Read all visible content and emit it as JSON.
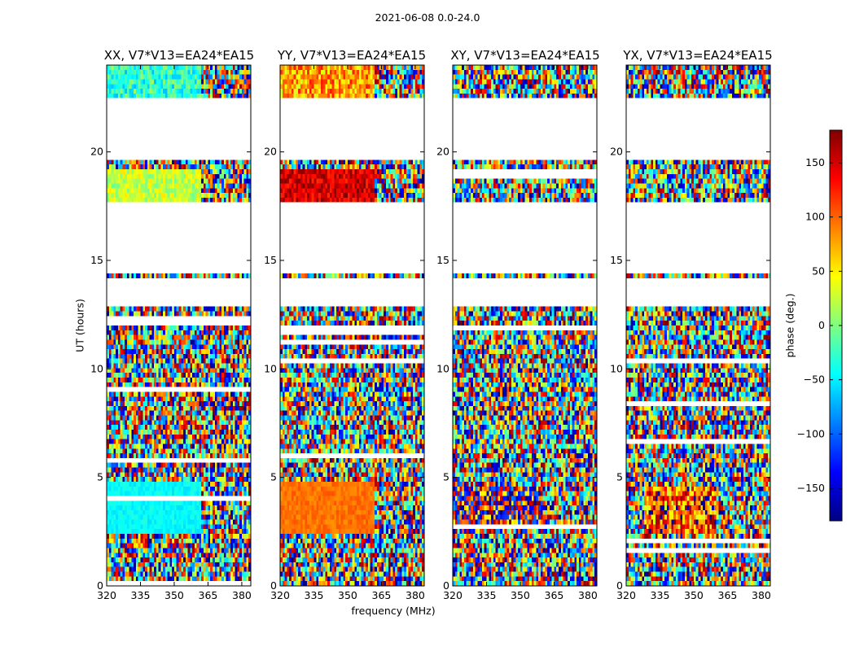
{
  "figure_title": "2021-06-08 0.0-24.0",
  "chart_data": {
    "type": "heatmap",
    "xlabel": "frequency (MHz)",
    "ylabel": "UT (hours)",
    "xlim": [
      320,
      384
    ],
    "ylim": [
      0,
      24
    ],
    "xticks": [
      320,
      335,
      350,
      365,
      380
    ],
    "yticks": [
      0,
      5,
      10,
      15,
      20
    ],
    "colorbar": {
      "label": "phase (deg.)",
      "range": [
        -180,
        180
      ],
      "ticks": [
        -150,
        -100,
        -50,
        0,
        50,
        100,
        150
      ],
      "colormap": "jet"
    },
    "flagged_time_ranges_hours": [
      [
        12.9,
        14.2
      ],
      [
        14.4,
        17.6
      ],
      [
        19.6,
        22.4
      ]
    ],
    "panels": [
      {
        "title": "XX, V7*V13=EA24*EA15",
        "regions": [
          {
            "t": [
              2.5,
              4.7
            ],
            "f": [
              320,
              362
            ],
            "phase": -45,
            "spread": 12
          },
          {
            "t": [
              17.7,
              19.2
            ],
            "f": [
              320,
              362
            ],
            "phase": 25,
            "spread": 30
          },
          {
            "t": [
              22.5,
              24.0
            ],
            "f": [
              320,
              362
            ],
            "phase": -30,
            "spread": 40
          }
        ]
      },
      {
        "title": "YY, V7*V13=EA24*EA15",
        "regions": [
          {
            "t": [
              2.5,
              4.7
            ],
            "f": [
              320,
              362
            ],
            "phase": 95,
            "spread": 12
          },
          {
            "t": [
              17.7,
              19.2
            ],
            "f": [
              320,
              362
            ],
            "phase": 150,
            "spread": 30
          },
          {
            "t": [
              22.5,
              24.0
            ],
            "f": [
              320,
              362
            ],
            "phase": 80,
            "spread": 50
          }
        ]
      },
      {
        "title": "XY, V7*V13=EA24*EA15",
        "regions": [
          {
            "t": [
              2.8,
              4.6
            ],
            "f": [
              320,
              360
            ],
            "phase": 160,
            "spread": 120
          }
        ]
      },
      {
        "title": "YX, V7*V13=EA24*EA15",
        "regions": [
          {
            "t": [
              2.5,
              4.6
            ],
            "f": [
              328,
              360
            ],
            "phase": 110,
            "spread": 90
          }
        ]
      }
    ]
  }
}
